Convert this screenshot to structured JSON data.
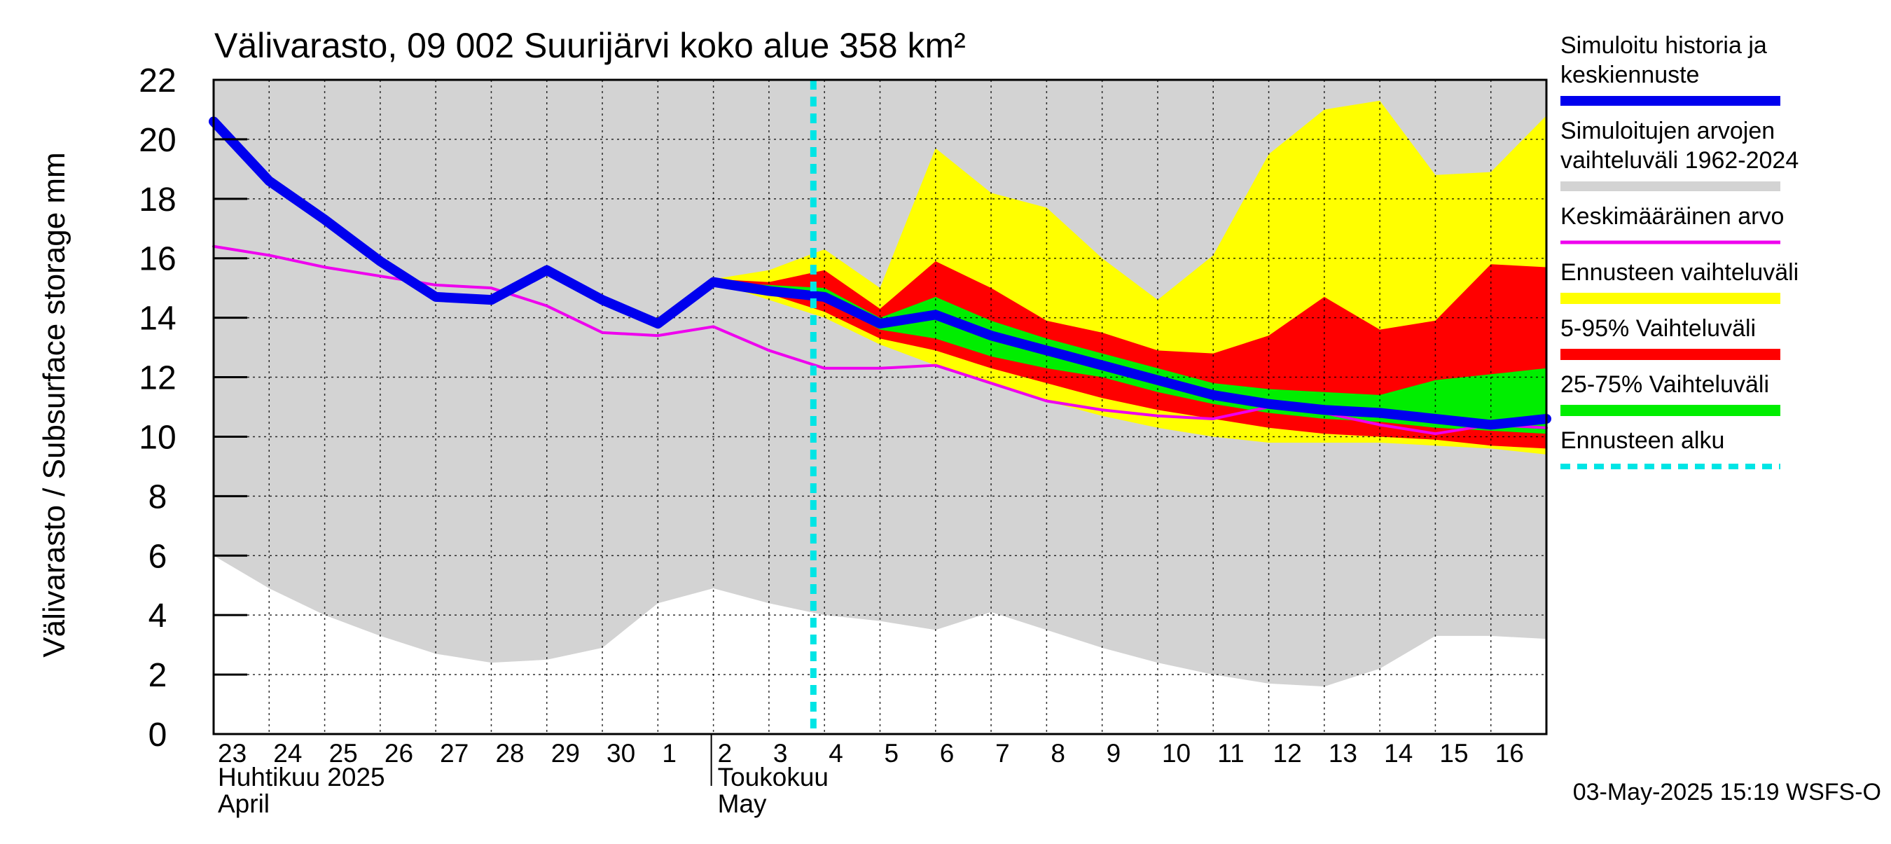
{
  "chart_data": {
    "type": "area",
    "title": "Välivarasto, 09 002 Suurijärvi koko alue 358 km²",
    "ylabel": "Välivarasto / Subsurface storage  mm",
    "ylim": [
      0,
      22
    ],
    "yticks": [
      0,
      2,
      4,
      6,
      8,
      10,
      12,
      14,
      16,
      18,
      20,
      22
    ],
    "grid": true,
    "legend_placement": "right",
    "x_tick_labels": [
      "23",
      "24",
      "25",
      "26",
      "27",
      "28",
      "29",
      "30",
      "1",
      "2",
      "3",
      "4",
      "5",
      "6",
      "7",
      "8",
      "9",
      "10",
      "11",
      "12",
      "13",
      "14",
      "15",
      "16"
    ],
    "x_month_labels": [
      {
        "line1": "Huhtikuu  2025",
        "line2": "April",
        "at_day": 0
      },
      {
        "line1": "Toukokuu",
        "line2": "May",
        "at_day": 9
      }
    ],
    "x_day_range": [
      0,
      24
    ],
    "forecast_start_day": 10.8,
    "footer": "03-May-2025 15:19 WSFS-O",
    "colors": {
      "history": "#0000ee",
      "sim_range": "#d3d3d3",
      "mean": "#ee00ee",
      "forecast_range": "#ffff00",
      "p5_95": "#ff0000",
      "p25_75": "#00ee00",
      "forecast_start": "#00e5e5"
    },
    "series": [
      {
        "name": "Simuloitujen arvojen vaihteluväli 1962-2024",
        "kind": "band",
        "x": [
          0,
          1,
          2,
          3,
          4,
          5,
          6,
          7,
          8,
          9,
          10,
          11,
          12,
          13,
          14,
          15,
          16,
          17,
          18,
          19,
          20,
          21,
          22,
          23,
          24
        ],
        "lower": [
          6.0,
          4.9,
          4.0,
          3.3,
          2.7,
          2.4,
          2.5,
          2.9,
          4.4,
          4.9,
          4.4,
          4.0,
          3.8,
          3.5,
          4.1,
          3.5,
          2.9,
          2.4,
          2.0,
          1.7,
          1.6,
          2.2,
          3.3,
          3.3,
          3.2
        ],
        "upper": [
          22,
          22,
          22,
          22,
          22,
          22,
          22,
          22,
          22,
          22,
          22,
          22,
          22,
          22,
          22,
          22,
          22,
          22,
          22,
          22,
          22,
          22,
          22,
          22,
          22
        ]
      },
      {
        "name": "Ennusteen vaihteluväli",
        "kind": "band",
        "x": [
          9,
          10,
          11,
          12,
          13,
          14,
          15,
          16,
          17,
          18,
          19,
          20,
          21,
          22,
          23,
          24
        ],
        "lower": [
          15.2,
          14.6,
          14.0,
          13.1,
          12.4,
          11.8,
          11.2,
          10.7,
          10.3,
          10.0,
          9.8,
          9.8,
          9.8,
          9.7,
          9.6,
          9.4
        ],
        "upper": [
          15.3,
          15.6,
          16.3,
          15.0,
          19.7,
          18.2,
          17.7,
          16.0,
          14.6,
          16.1,
          19.5,
          21.0,
          21.3,
          18.8,
          18.9,
          20.8
        ]
      },
      {
        "name": "5-95% Vaihteluväli",
        "kind": "band",
        "x": [
          9,
          10,
          11,
          12,
          13,
          14,
          15,
          16,
          17,
          18,
          19,
          20,
          21,
          22,
          23,
          24
        ],
        "lower": [
          15.2,
          14.8,
          14.2,
          13.3,
          12.9,
          12.3,
          11.8,
          11.3,
          10.9,
          10.6,
          10.3,
          10.1,
          10.0,
          9.9,
          9.7,
          9.6
        ],
        "upper": [
          15.3,
          15.2,
          15.6,
          14.3,
          15.9,
          15.0,
          13.9,
          13.5,
          12.9,
          12.8,
          13.4,
          14.7,
          13.6,
          13.9,
          15.8,
          15.7
        ]
      },
      {
        "name": "25-75% Vaihteluväli",
        "kind": "band",
        "x": [
          9,
          10,
          11,
          12,
          13,
          14,
          15,
          16,
          17,
          18,
          19,
          20,
          21,
          22,
          23,
          24
        ],
        "lower": [
          15.2,
          14.9,
          14.6,
          13.6,
          13.3,
          12.7,
          12.3,
          12.0,
          11.5,
          11.1,
          10.8,
          10.6,
          10.5,
          10.3,
          10.2,
          10.1
        ],
        "upper": [
          15.2,
          15.1,
          15.0,
          14.0,
          14.7,
          13.9,
          13.3,
          12.8,
          12.3,
          11.8,
          11.6,
          11.5,
          11.4,
          11.9,
          12.1,
          12.3
        ]
      },
      {
        "name": "Keskimääräinen arvo",
        "kind": "line",
        "x": [
          0,
          1,
          2,
          3,
          4,
          5,
          6,
          7,
          8,
          9,
          10,
          11,
          12,
          13,
          14,
          15,
          16,
          17,
          18,
          19,
          20,
          21,
          22,
          23,
          24
        ],
        "values": [
          16.4,
          16.1,
          15.7,
          15.4,
          15.1,
          15.0,
          14.4,
          13.5,
          13.4,
          13.7,
          12.9,
          12.3,
          12.3,
          12.4,
          11.8,
          11.2,
          10.9,
          10.7,
          10.6,
          11.0,
          10.8,
          10.4,
          10.1,
          10.4,
          10.3
        ]
      },
      {
        "name": "Simuloitu historia ja keskiennuste",
        "kind": "line",
        "x": [
          0,
          1,
          2,
          3,
          4,
          5,
          6,
          7,
          8,
          9,
          10,
          11,
          12,
          13,
          14,
          15,
          16,
          17,
          18,
          19,
          20,
          21,
          22,
          23,
          24
        ],
        "values": [
          20.6,
          18.6,
          17.3,
          15.9,
          14.7,
          14.6,
          15.6,
          14.6,
          13.8,
          15.2,
          14.9,
          14.7,
          13.8,
          14.1,
          13.4,
          12.9,
          12.4,
          11.9,
          11.4,
          11.1,
          10.9,
          10.8,
          10.6,
          10.4,
          10.6
        ]
      }
    ],
    "legend": [
      {
        "key": "history",
        "lines": [
          "Simuloitu historia ja",
          "keskiennuste"
        ]
      },
      {
        "key": "sim_range",
        "lines": [
          "Simuloitujen arvojen",
          "vaihteluväli 1962-2024"
        ]
      },
      {
        "key": "mean",
        "lines": [
          "Keskimääräinen arvo"
        ]
      },
      {
        "key": "forecast_range",
        "lines": [
          "Ennusteen vaihteluväli"
        ]
      },
      {
        "key": "p5_95",
        "lines": [
          "5-95% Vaihteluväli"
        ]
      },
      {
        "key": "p25_75",
        "lines": [
          "25-75% Vaihteluväli"
        ]
      },
      {
        "key": "forecast_start",
        "lines": [
          "Ennusteen alku"
        ]
      }
    ]
  }
}
